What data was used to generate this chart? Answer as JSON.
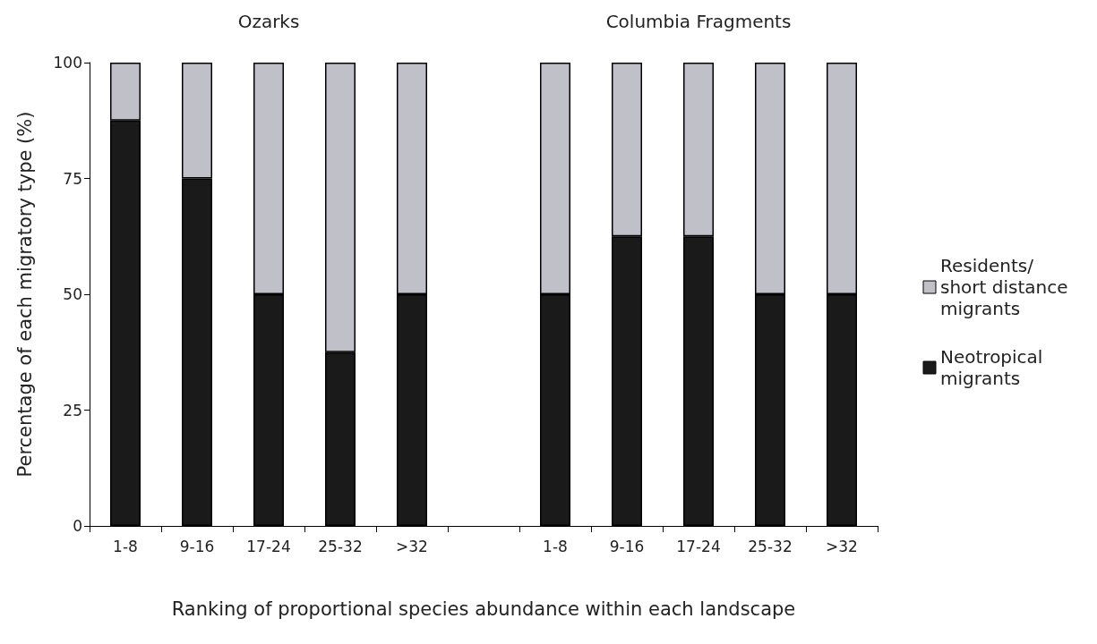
{
  "chart_data": {
    "type": "bar",
    "stacked": true,
    "xlabel": "Ranking of proportional species abundance within each landscape",
    "ylabel": "Percentage of each migratory type (%)",
    "categories": [
      "1-8",
      "9-16",
      "17-24",
      "25-32",
      ">32",
      null,
      "1-8",
      "9-16",
      "17-24",
      "25-32",
      ">32"
    ],
    "series": [
      {
        "name": "Neotropical migrants",
        "color": "#1a1a1a",
        "values": [
          87.5,
          75,
          50,
          37.5,
          50,
          null,
          50,
          62.5,
          62.5,
          50,
          50
        ]
      },
      {
        "name": "Residents/ short distance migrants",
        "color": "#c0c0c8",
        "values": [
          12.5,
          25,
          50,
          62.5,
          50,
          null,
          50,
          37.5,
          37.5,
          50,
          50
        ]
      }
    ],
    "ylim": [
      0,
      100
    ],
    "yticks": [
      0,
      25,
      50,
      75,
      100
    ],
    "grid": false,
    "legend": "right",
    "annotations": [
      "Ozarks",
      "Columbia Fragments"
    ]
  }
}
